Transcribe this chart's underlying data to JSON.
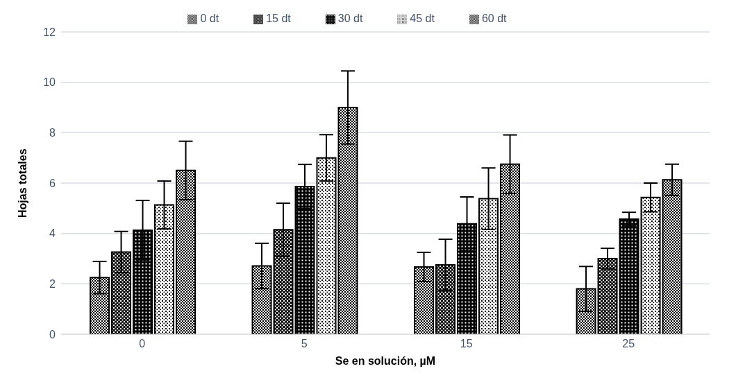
{
  "chart_data": {
    "type": "bar",
    "xlabel": "Se en solución, µM",
    "ylabel": "Hojas totales",
    "categories": [
      "0",
      "5",
      "15",
      "25"
    ],
    "series": [
      {
        "name": "0 dt",
        "color": "#000000",
        "values": [
          2.25,
          2.71,
          2.67,
          1.8
        ],
        "errors": [
          0.64,
          0.9,
          0.58,
          0.89
        ]
      },
      {
        "name": "15 dt",
        "color": "#000000",
        "values": [
          3.26,
          4.15,
          2.75,
          3.0
        ],
        "errors": [
          0.82,
          1.05,
          1.02,
          0.41
        ]
      },
      {
        "name": "30 dt",
        "color": "#000000",
        "values": [
          4.13,
          5.86,
          4.38,
          4.57
        ],
        "errors": [
          1.18,
          0.88,
          1.07,
          0.27
        ]
      },
      {
        "name": "45 dt",
        "color": "#000000",
        "values": [
          5.13,
          7.0,
          5.38,
          5.43
        ],
        "errors": [
          0.95,
          0.92,
          1.22,
          0.57
        ]
      },
      {
        "name": "60 dt",
        "color": "#000000",
        "values": [
          6.5,
          9.0,
          6.75,
          6.13
        ],
        "errors": [
          1.16,
          1.45,
          1.16,
          0.62
        ]
      }
    ],
    "ylim": [
      0,
      12
    ],
    "yticks": [
      0,
      2,
      4,
      6,
      8,
      10,
      12
    ],
    "grid": "y",
    "legend": "top"
  }
}
